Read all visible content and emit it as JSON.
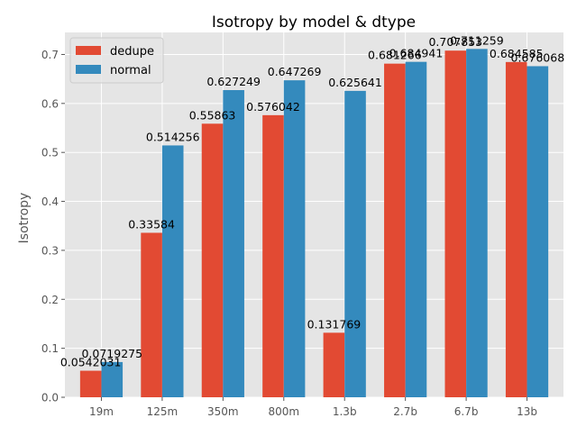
{
  "chart_data": {
    "type": "bar",
    "title": "Isotropy by model & dtype",
    "xlabel": "",
    "ylabel": "Isotropy",
    "categories": [
      "19m",
      "125m",
      "350m",
      "800m",
      "1.3b",
      "2.7b",
      "6.7b",
      "13b"
    ],
    "series": [
      {
        "name": "dedupe",
        "color": "#E24A33",
        "values": [
          0.0542031,
          0.33584,
          0.55863,
          0.576042,
          0.131769,
          0.681266,
          0.707853,
          0.684585
        ],
        "labels": [
          "0.0542031",
          "0.33584",
          "0.55863",
          "0.576042",
          "0.131769",
          "0.681266",
          "0.707853",
          "0.684585"
        ]
      },
      {
        "name": "normal",
        "color": "#348ABD",
        "values": [
          0.0719275,
          0.514256,
          0.627249,
          0.647269,
          0.625641,
          0.684941,
          0.711259,
          0.676068
        ],
        "labels": [
          "0.0719275",
          "0.514256",
          "0.627249",
          "0.647269",
          "0.625641",
          "0.684941",
          "0.711259",
          "0.676068"
        ]
      }
    ],
    "ylim": [
      0,
      0.745
    ],
    "yticks": [
      0.0,
      0.1,
      0.2,
      0.3,
      0.4,
      0.5,
      0.6,
      0.7
    ],
    "ytick_labels": [
      "0.0",
      "0.1",
      "0.2",
      "0.3",
      "0.4",
      "0.5",
      "0.6",
      "0.7"
    ],
    "grid": true,
    "legend_position": "top-left",
    "style": {
      "plot_background": "#E5E5E5",
      "grid_color": "#FFFFFF",
      "text_color": "#555555"
    }
  }
}
